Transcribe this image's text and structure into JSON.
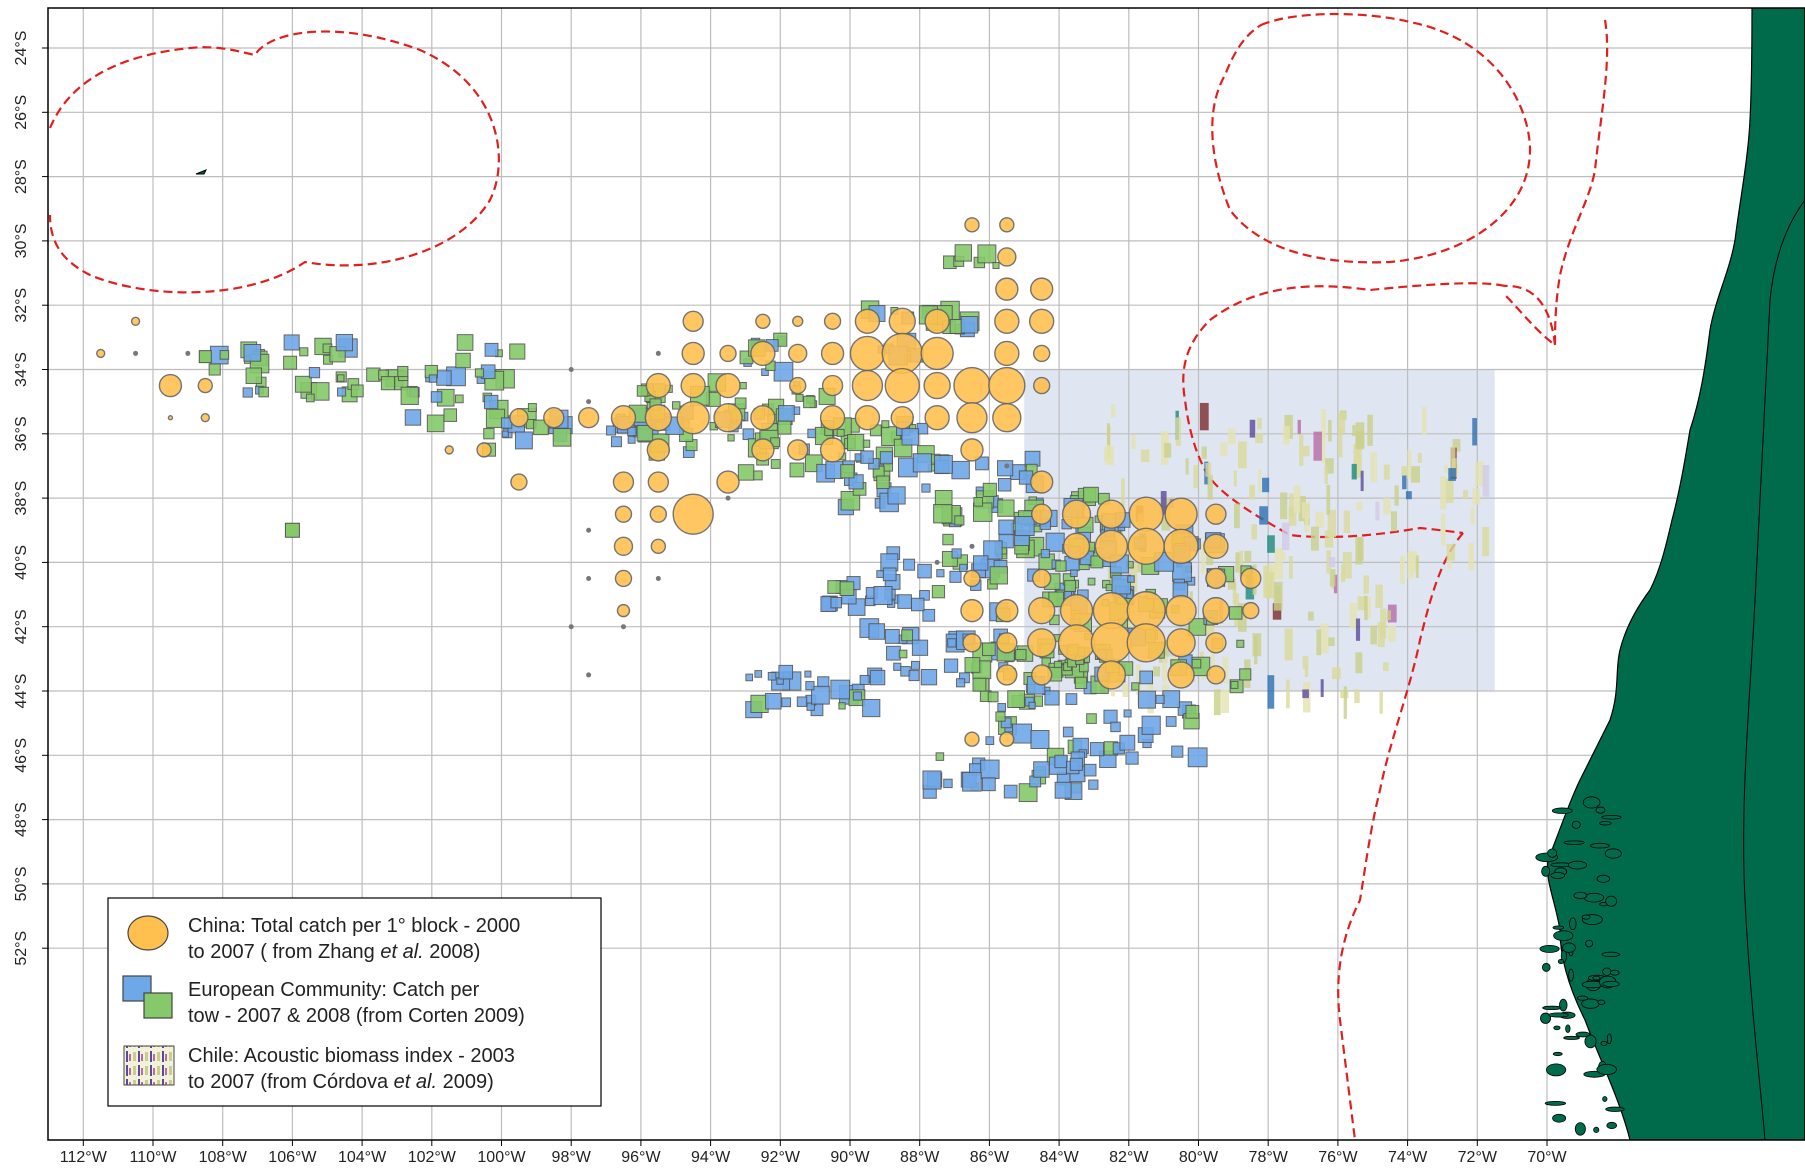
{
  "map": {
    "lon_range": [
      -113.0,
      -69.4
    ],
    "lat_range": [
      -23.0,
      -54.0
    ],
    "lon_ticks": [
      "112°W",
      "110°W",
      "108°W",
      "106°W",
      "104°W",
      "102°W",
      "100°W",
      "98°W",
      "96°W",
      "94°W",
      "92°W",
      "90°W",
      "88°W",
      "86°W",
      "84°W",
      "82°W",
      "80°W",
      "78°W",
      "76°W",
      "74°W",
      "72°W",
      "70°W"
    ],
    "lat_ticks": [
      "24°S",
      "26°S",
      "28°S",
      "30°S",
      "32°S",
      "34°S",
      "36°S",
      "38°S",
      "40°S",
      "42°S",
      "44°S",
      "46°S",
      "48°S",
      "50°S",
      "52°S"
    ],
    "colors": {
      "land": "#006b4a",
      "grid": "#bdbdbd",
      "eez": "#e0201e",
      "shade": "#dfe6f2",
      "china": "#ffc050",
      "ec_blue": "#6fa8e8",
      "ec_green": "#86c96a"
    }
  },
  "legend": {
    "china": {
      "line1": "China: Total catch per 1° block - 2000",
      "line2_pre": " to 2007 ( from Zhang ",
      "line2_italic": "et al.",
      "line2_post": " 2008)"
    },
    "ec": {
      "line1": "European Community: Catch per",
      "line2": "tow - 2007 & 2008 (from Corten 2009)"
    },
    "chile": {
      "line1": "Chile: Acoustic biomass index  - 2003",
      "line2_pre": "to 2007 (from Córdova ",
      "line2_italic": "et al.",
      "line2_post": " 2009)"
    }
  }
}
